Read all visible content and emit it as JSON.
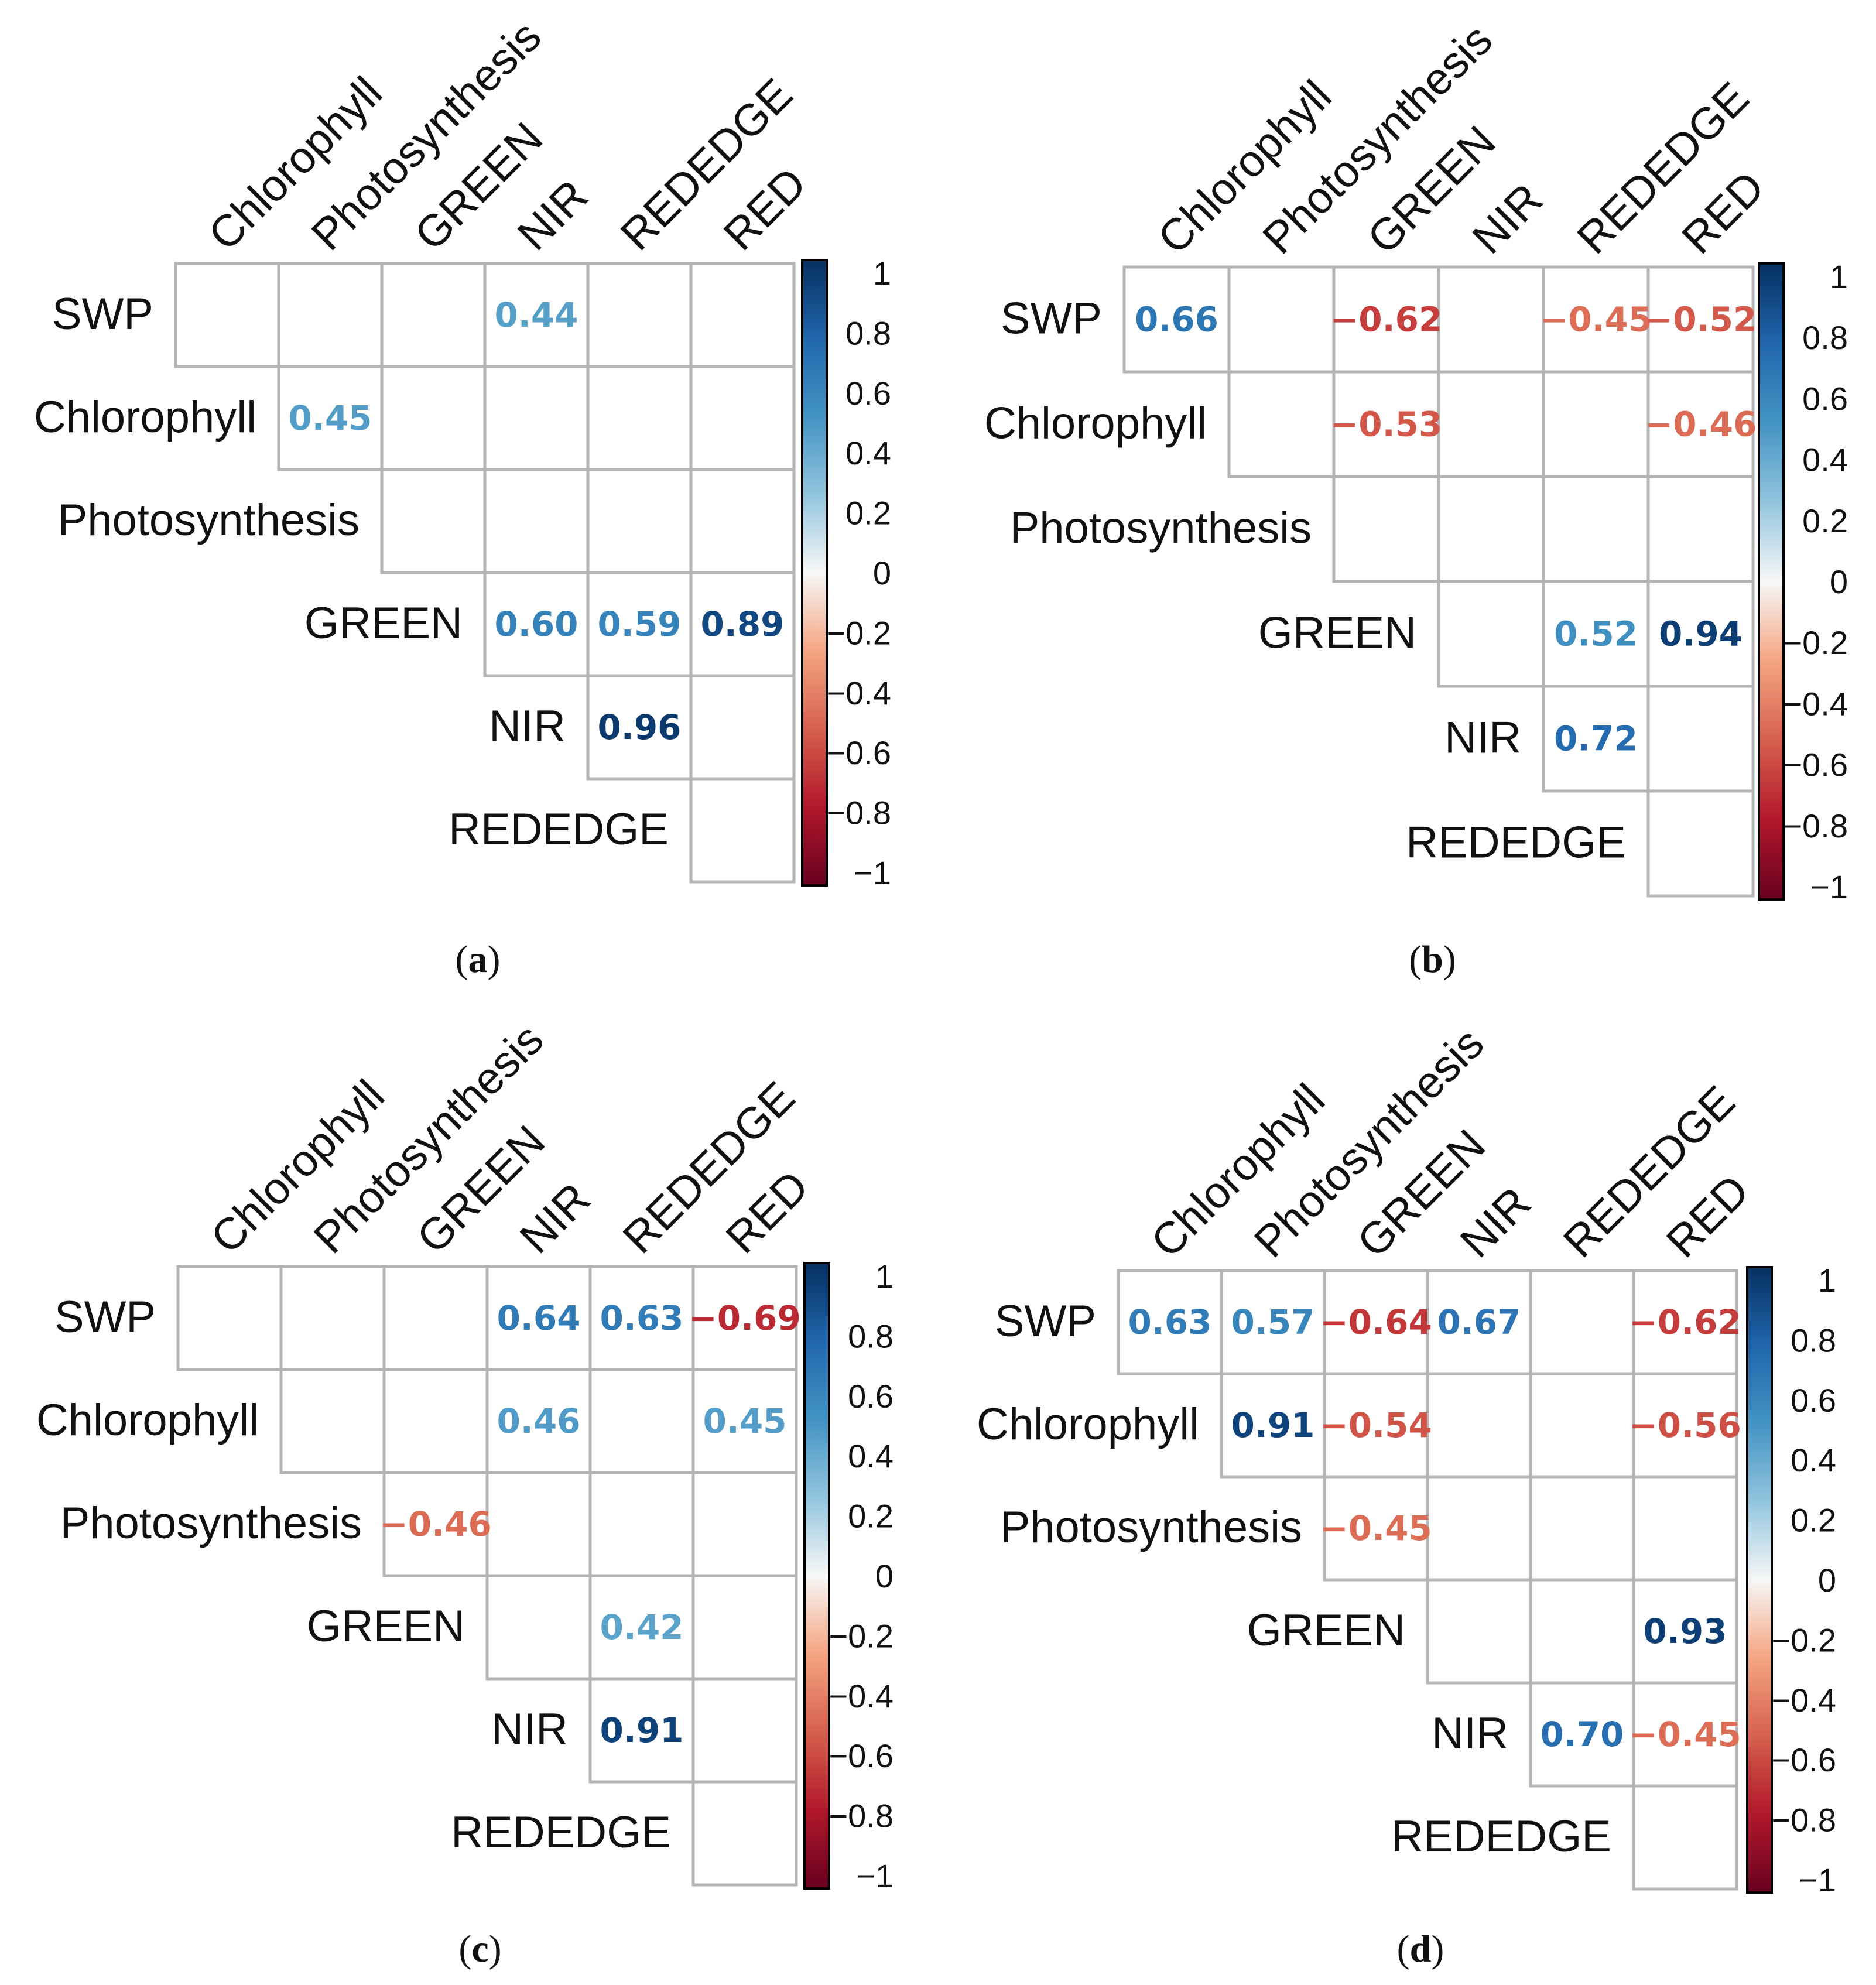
{
  "figure": {
    "colors": {
      "positive_strong": "#053061",
      "positive_mid": "#2166ac",
      "positive_light": "#4393c3",
      "positive_pale": "#92c5de",
      "neutral": "#f7f7f7",
      "negative_pale": "#f4a582",
      "negative_light": "#d6604d",
      "negative_mid": "#b2182b",
      "negative_strong": "#67001f",
      "grid": "#b4b4b4"
    }
  },
  "chart_data": [
    {
      "type": "heatmap",
      "caption_open": "(",
      "caption": "a",
      "caption_close": ")",
      "row_labels": [
        "SWP",
        "Chlorophyll",
        "Photosynthesis",
        "GREEN",
        "NIR",
        "REDEDGE"
      ],
      "col_labels": [
        "Chlorophyll",
        "Photosynthesis",
        "GREEN",
        "NIR",
        "REDEDGE",
        "RED"
      ],
      "matrix_shape": "upper-triangular",
      "cells": [
        {
          "row": 0,
          "col": 3,
          "value": 0.44,
          "label": "0.44"
        },
        {
          "row": 1,
          "col": 1,
          "value": 0.45,
          "label": "0.45"
        },
        {
          "row": 3,
          "col": 3,
          "value": 0.6,
          "label": "0.60"
        },
        {
          "row": 3,
          "col": 4,
          "value": 0.59,
          "label": "0.59"
        },
        {
          "row": 3,
          "col": 5,
          "value": 0.89,
          "label": "0.89"
        },
        {
          "row": 4,
          "col": 4,
          "value": 0.96,
          "label": "0.96"
        }
      ],
      "colorbar": {
        "range": [
          -1,
          1
        ],
        "ticks": [
          "1",
          "0.8",
          "0.6",
          "0.4",
          "0.2",
          "0",
          "−0.2",
          "−0.4",
          "−0.6",
          "−0.8",
          "−1"
        ]
      }
    },
    {
      "type": "heatmap",
      "caption_open": "(",
      "caption": "b",
      "caption_close": ")",
      "row_labels": [
        "SWP",
        "Chlorophyll",
        "Photosynthesis",
        "GREEN",
        "NIR",
        "REDEDGE"
      ],
      "col_labels": [
        "Chlorophyll",
        "Photosynthesis",
        "GREEN",
        "NIR",
        "REDEDGE",
        "RED"
      ],
      "matrix_shape": "upper-triangular",
      "cells": [
        {
          "row": 0,
          "col": 0,
          "value": 0.66,
          "label": "0.66"
        },
        {
          "row": 0,
          "col": 2,
          "value": -0.62,
          "label": "−0.62"
        },
        {
          "row": 0,
          "col": 4,
          "value": -0.45,
          "label": "−0.45"
        },
        {
          "row": 0,
          "col": 5,
          "value": -0.52,
          "label": "−0.52"
        },
        {
          "row": 1,
          "col": 2,
          "value": -0.53,
          "label": "−0.53"
        },
        {
          "row": 1,
          "col": 5,
          "value": -0.46,
          "label": "−0.46"
        },
        {
          "row": 3,
          "col": 4,
          "value": 0.52,
          "label": "0.52"
        },
        {
          "row": 3,
          "col": 5,
          "value": 0.94,
          "label": "0.94"
        },
        {
          "row": 4,
          "col": 4,
          "value": 0.72,
          "label": "0.72"
        }
      ],
      "colorbar": {
        "range": [
          -1,
          1
        ],
        "ticks": [
          "1",
          "0.8",
          "0.6",
          "0.4",
          "0.2",
          "0",
          "−0.2",
          "−0.4",
          "−0.6",
          "−0.8",
          "−1"
        ]
      }
    },
    {
      "type": "heatmap",
      "caption_open": "(",
      "caption": "c",
      "caption_close": ")",
      "row_labels": [
        "SWP",
        "Chlorophyll",
        "Photosynthesis",
        "GREEN",
        "NIR",
        "REDEDGE"
      ],
      "col_labels": [
        "Chlorophyll",
        "Photosynthesis",
        "GREEN",
        "NIR",
        "REDEDGE",
        "RED"
      ],
      "matrix_shape": "upper-triangular",
      "cells": [
        {
          "row": 0,
          "col": 3,
          "value": 0.64,
          "label": "0.64"
        },
        {
          "row": 0,
          "col": 4,
          "value": 0.63,
          "label": "0.63"
        },
        {
          "row": 0,
          "col": 5,
          "value": -0.69,
          "label": "−0.69"
        },
        {
          "row": 1,
          "col": 3,
          "value": 0.46,
          "label": "0.46"
        },
        {
          "row": 1,
          "col": 5,
          "value": 0.45,
          "label": "0.45"
        },
        {
          "row": 2,
          "col": 2,
          "value": -0.46,
          "label": "−0.46"
        },
        {
          "row": 3,
          "col": 4,
          "value": 0.42,
          "label": "0.42"
        },
        {
          "row": 4,
          "col": 4,
          "value": 0.91,
          "label": "0.91"
        }
      ],
      "colorbar": {
        "range": [
          -1,
          1
        ],
        "ticks": [
          "1",
          "0.8",
          "0.6",
          "0.4",
          "0.2",
          "0",
          "−0.2",
          "−0.4",
          "−0.6",
          "−0.8",
          "−1"
        ]
      }
    },
    {
      "type": "heatmap",
      "caption_open": "(",
      "caption": "d",
      "caption_close": ")",
      "row_labels": [
        "SWP",
        "Chlorophyll",
        "Photosynthesis",
        "GREEN",
        "NIR",
        "REDEDGE"
      ],
      "col_labels": [
        "Chlorophyll",
        "Photosynthesis",
        "GREEN",
        "NIR",
        "REDEDGE",
        "RED"
      ],
      "matrix_shape": "upper-triangular",
      "cells": [
        {
          "row": 0,
          "col": 0,
          "value": 0.63,
          "label": "0.63"
        },
        {
          "row": 0,
          "col": 1,
          "value": 0.57,
          "label": "0.57"
        },
        {
          "row": 0,
          "col": 2,
          "value": -0.64,
          "label": "−0.64"
        },
        {
          "row": 0,
          "col": 3,
          "value": 0.67,
          "label": "0.67"
        },
        {
          "row": 0,
          "col": 5,
          "value": -0.62,
          "label": "−0.62"
        },
        {
          "row": 1,
          "col": 1,
          "value": 0.91,
          "label": "0.91"
        },
        {
          "row": 1,
          "col": 2,
          "value": -0.54,
          "label": "−0.54"
        },
        {
          "row": 1,
          "col": 5,
          "value": -0.56,
          "label": "−0.56"
        },
        {
          "row": 2,
          "col": 2,
          "value": -0.45,
          "label": "−0.45"
        },
        {
          "row": 3,
          "col": 5,
          "value": 0.93,
          "label": "0.93"
        },
        {
          "row": 4,
          "col": 4,
          "value": 0.7,
          "label": "0.70"
        },
        {
          "row": 4,
          "col": 5,
          "value": -0.45,
          "label": "−0.45"
        }
      ],
      "colorbar": {
        "range": [
          -1,
          1
        ],
        "ticks": [
          "1",
          "0.8",
          "0.6",
          "0.4",
          "0.2",
          "0",
          "−0.2",
          "−0.4",
          "−0.6",
          "−0.8",
          "−1"
        ]
      }
    }
  ]
}
